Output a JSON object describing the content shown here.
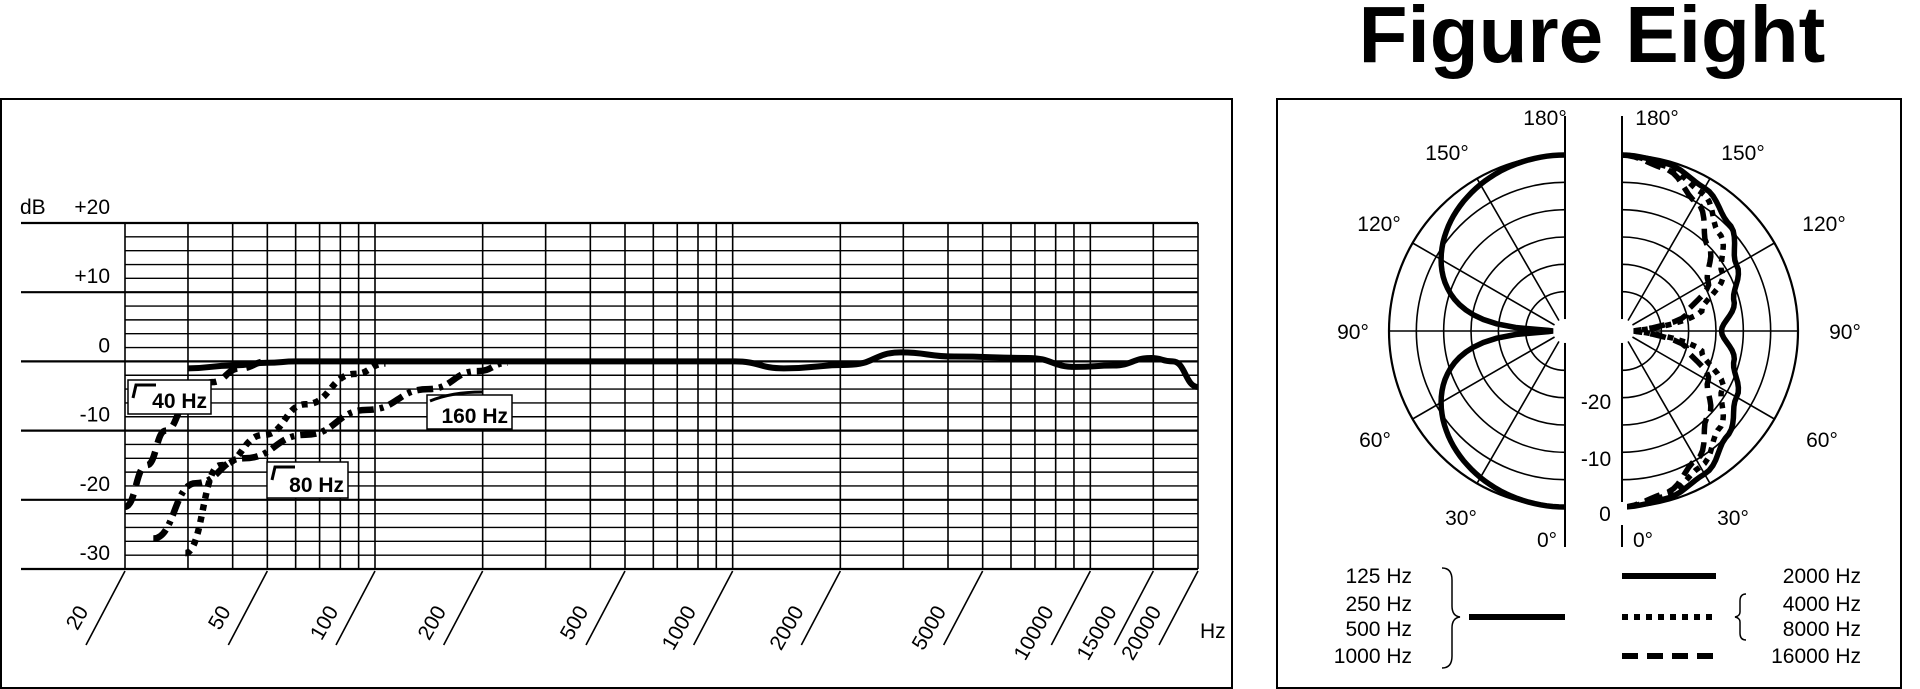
{
  "title": "Figure Eight",
  "chart_data": [
    {
      "type": "line",
      "xscale": "log",
      "xlim": [
        20,
        20000
      ],
      "ylim": [
        -30,
        20
      ],
      "grid": true,
      "ylabel": "dB",
      "xunit": "Hz",
      "yticks": [
        "+20",
        "+10",
        "0",
        "-10",
        "-20",
        "-30"
      ],
      "ytick_values": [
        20,
        10,
        0,
        -10,
        -20,
        -30
      ],
      "xticks": [
        "20",
        "50",
        "100",
        "200",
        "500",
        "1000",
        "2000",
        "5000",
        "10000",
        "15000",
        "20000"
      ],
      "xtick_values": [
        20,
        50,
        100,
        200,
        500,
        1000,
        2000,
        5000,
        10000,
        15000,
        20000
      ],
      "series": [
        {
          "style": "solid",
          "x": [
            30,
            40,
            50,
            60,
            100,
            500,
            1014,
            1390,
            2100,
            2950,
            4170,
            6700,
            9100,
            11600,
            14800,
            17000,
            20000
          ],
          "y": [
            -1,
            -0.6,
            -0.2,
            0,
            0,
            0,
            0,
            -1,
            -0.5,
            1.3,
            0.7,
            0.5,
            -0.8,
            -0.6,
            0.5,
            0,
            -3.7
          ]
        },
        {
          "name": "40 Hz",
          "style": "dashed",
          "x": [
            20,
            23,
            26,
            30,
            35,
            42,
            50
          ],
          "y": [
            -21,
            -15,
            -10,
            -6,
            -3,
            -1,
            0
          ]
        },
        {
          "name": "80 Hz",
          "style": "dotted",
          "x": [
            29.5,
            37,
            49,
            64,
            88,
            107
          ],
          "y": [
            -27.7,
            -15,
            -10.6,
            -6.2,
            -1.8,
            -0.3
          ]
        },
        {
          "name": "160 Hz",
          "style": "dash-dot",
          "x": [
            24,
            31.5,
            43,
            64,
            95,
            141,
            194,
            235
          ],
          "y": [
            -25.6,
            -17.6,
            -14,
            -10.6,
            -7,
            -4,
            -1.4,
            -0.2
          ]
        }
      ],
      "annotations": [
        "40 Hz",
        "80 Hz",
        "160 Hz"
      ]
    },
    {
      "type": "polar",
      "rlim_db": [
        -30,
        0
      ],
      "r_labels": [
        "-20",
        "-10",
        "0"
      ],
      "angle_labels": [
        "180°",
        "150°",
        "120°",
        "90°",
        "60°",
        "30°",
        "0°"
      ],
      "angles": [
        0,
        15,
        30,
        45,
        60,
        75,
        90,
        105,
        120,
        135,
        150,
        165,
        180
      ],
      "series": [
        {
          "side": "left",
          "style": "solid",
          "labels": [
            "125 Hz",
            "250 Hz",
            "500 Hz",
            "1000 Hz"
          ],
          "db": [
            0,
            -0.3,
            -1.2,
            -3,
            -6,
            -11.7,
            -30,
            -11.7,
            -6,
            -3,
            -1.2,
            -0.3,
            0
          ]
        },
        {
          "side": "right",
          "style": "solid",
          "labels": [
            "2000 Hz"
          ],
          "db": [
            0,
            -0.5,
            -2,
            -5,
            -8,
            -11,
            -14,
            -11,
            -8,
            -4.5,
            -2,
            -0.5,
            0
          ]
        },
        {
          "side": "right",
          "style": "dotted",
          "labels": [
            "4000 Hz",
            "8000 Hz"
          ],
          "db": [
            0,
            -1,
            -3.5,
            -7,
            -11,
            -17,
            -30,
            -17,
            -11,
            -7,
            -3,
            -1,
            0
          ]
        },
        {
          "side": "right",
          "style": "dashed",
          "labels": [
            "16000 Hz"
          ],
          "db": [
            0,
            -1.5,
            -5,
            -10,
            -14,
            -20,
            -30,
            -20,
            -14,
            -10,
            -5,
            -1.5,
            0
          ]
        }
      ]
    }
  ]
}
